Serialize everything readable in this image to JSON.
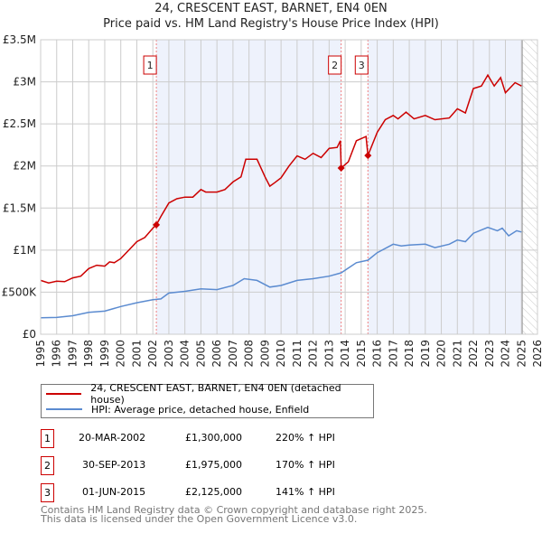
{
  "title_line1": "24, CRESCENT EAST, BARNET, EN4 0EN",
  "title_line2": "Price paid vs. HM Land Registry's House Price Index (HPI)",
  "colors": {
    "property": "#cc0000",
    "hpi": "#5b8bd0",
    "shade": "#eef2fc"
  },
  "chart_data": {
    "type": "line",
    "xlim": [
      1995,
      2026
    ],
    "ylim": [
      0,
      3500000
    ],
    "y_ticks": [
      {
        "v": 0,
        "label": "£0"
      },
      {
        "v": 500000,
        "label": "£500K"
      },
      {
        "v": 1000000,
        "label": "£1M"
      },
      {
        "v": 1500000,
        "label": "£1.5M"
      },
      {
        "v": 2000000,
        "label": "£2M"
      },
      {
        "v": 2500000,
        "label": "£2.5M"
      },
      {
        "v": 3000000,
        "label": "£3M"
      },
      {
        "v": 3500000,
        "label": "£3.5M"
      }
    ],
    "x_ticks": [
      "1995",
      "1996",
      "1997",
      "1998",
      "1999",
      "2000",
      "2001",
      "2002",
      "2003",
      "2004",
      "2005",
      "2006",
      "2007",
      "2008",
      "2009",
      "2010",
      "2011",
      "2012",
      "2013",
      "2014",
      "2015",
      "2016",
      "2017",
      "2018",
      "2019",
      "2020",
      "2021",
      "2022",
      "2023",
      "2024",
      "2025",
      "2026"
    ],
    "data_end": 2025.05,
    "series": [
      {
        "name": "24, CRESCENT EAST, BARNET, EN4 0EN (detached house)",
        "color": "#cc0000",
        "points": [
          [
            1995,
            640000
          ],
          [
            1995.5,
            610000
          ],
          [
            1996,
            630000
          ],
          [
            1996.5,
            625000
          ],
          [
            1997,
            670000
          ],
          [
            1997.5,
            690000
          ],
          [
            1998,
            780000
          ],
          [
            1998.5,
            820000
          ],
          [
            1999,
            810000
          ],
          [
            1999.3,
            860000
          ],
          [
            1999.6,
            850000
          ],
          [
            2000,
            900000
          ],
          [
            2000.5,
            1000000
          ],
          [
            2001,
            1100000
          ],
          [
            2001.5,
            1150000
          ],
          [
            2002,
            1260000
          ],
          [
            2002.22,
            1300000
          ],
          [
            2002.5,
            1400000
          ],
          [
            2003,
            1560000
          ],
          [
            2003.5,
            1610000
          ],
          [
            2004,
            1630000
          ],
          [
            2004.5,
            1630000
          ],
          [
            2005,
            1720000
          ],
          [
            2005.3,
            1690000
          ],
          [
            2006,
            1690000
          ],
          [
            2006.5,
            1720000
          ],
          [
            2007,
            1810000
          ],
          [
            2007.5,
            1870000
          ],
          [
            2007.8,
            2080000
          ],
          [
            2008.5,
            2080000
          ],
          [
            2009,
            1870000
          ],
          [
            2009.3,
            1760000
          ],
          [
            2009.6,
            1800000
          ],
          [
            2010,
            1860000
          ],
          [
            2010.5,
            2000000
          ],
          [
            2011,
            2120000
          ],
          [
            2011.5,
            2080000
          ],
          [
            2012,
            2150000
          ],
          [
            2012.5,
            2100000
          ],
          [
            2013,
            2210000
          ],
          [
            2013.5,
            2220000
          ],
          [
            2013.7,
            2300000
          ],
          [
            2013.75,
            1975000
          ],
          [
            2014.2,
            2050000
          ],
          [
            2014.7,
            2300000
          ],
          [
            2015.3,
            2350000
          ],
          [
            2015.42,
            2125000
          ],
          [
            2016,
            2400000
          ],
          [
            2016.5,
            2550000
          ],
          [
            2017,
            2600000
          ],
          [
            2017.3,
            2560000
          ],
          [
            2017.8,
            2640000
          ],
          [
            2018.3,
            2560000
          ],
          [
            2019,
            2600000
          ],
          [
            2019.6,
            2550000
          ],
          [
            2020.5,
            2570000
          ],
          [
            2021,
            2680000
          ],
          [
            2021.5,
            2630000
          ],
          [
            2022,
            2920000
          ],
          [
            2022.5,
            2950000
          ],
          [
            2022.9,
            3080000
          ],
          [
            2023.3,
            2950000
          ],
          [
            2023.7,
            3050000
          ],
          [
            2024,
            2870000
          ],
          [
            2024.6,
            2990000
          ],
          [
            2025,
            2950000
          ]
        ]
      },
      {
        "name": "HPI: Average price, detached house, Enfield",
        "color": "#5b8bd0",
        "points": [
          [
            1995,
            195000
          ],
          [
            1996,
            200000
          ],
          [
            1997,
            220000
          ],
          [
            1998,
            260000
          ],
          [
            1999,
            275000
          ],
          [
            2000,
            330000
          ],
          [
            2001,
            375000
          ],
          [
            2002,
            410000
          ],
          [
            2002.5,
            420000
          ],
          [
            2003,
            490000
          ],
          [
            2004,
            510000
          ],
          [
            2005,
            540000
          ],
          [
            2006,
            530000
          ],
          [
            2007,
            580000
          ],
          [
            2007.7,
            660000
          ],
          [
            2008.5,
            640000
          ],
          [
            2009.3,
            560000
          ],
          [
            2010,
            580000
          ],
          [
            2011,
            640000
          ],
          [
            2012,
            660000
          ],
          [
            2013,
            690000
          ],
          [
            2013.75,
            730000
          ],
          [
            2014.7,
            850000
          ],
          [
            2015.42,
            880000
          ],
          [
            2016,
            970000
          ],
          [
            2017,
            1070000
          ],
          [
            2017.5,
            1050000
          ],
          [
            2018,
            1060000
          ],
          [
            2019,
            1070000
          ],
          [
            2019.6,
            1030000
          ],
          [
            2020.5,
            1070000
          ],
          [
            2021,
            1120000
          ],
          [
            2021.5,
            1100000
          ],
          [
            2022,
            1200000
          ],
          [
            2022.9,
            1270000
          ],
          [
            2023.5,
            1230000
          ],
          [
            2023.8,
            1260000
          ],
          [
            2024.2,
            1170000
          ],
          [
            2024.7,
            1230000
          ],
          [
            2025,
            1215000
          ]
        ]
      }
    ],
    "sales": [
      {
        "n": "1",
        "x": 2002.22,
        "y": 1300000
      },
      {
        "n": "2",
        "x": 2013.75,
        "y": 1975000
      },
      {
        "n": "3",
        "x": 2015.42,
        "y": 2125000
      }
    ]
  },
  "legend": {
    "property": "24, CRESCENT EAST, BARNET, EN4 0EN (detached house)",
    "hpi": "HPI: Average price, detached house, Enfield"
  },
  "transactions": [
    {
      "n": "1",
      "date": "20-MAR-2002",
      "price": "£1,300,000",
      "hpi": "220% ↑ HPI"
    },
    {
      "n": "2",
      "date": "30-SEP-2013",
      "price": "£1,975,000",
      "hpi": "170% ↑ HPI"
    },
    {
      "n": "3",
      "date": "01-JUN-2015",
      "price": "£2,125,000",
      "hpi": "141% ↑ HPI"
    }
  ],
  "footer": {
    "line1": "Contains HM Land Registry data © Crown copyright and database right 2025.",
    "line2": "This data is licensed under the Open Government Licence v3.0."
  }
}
